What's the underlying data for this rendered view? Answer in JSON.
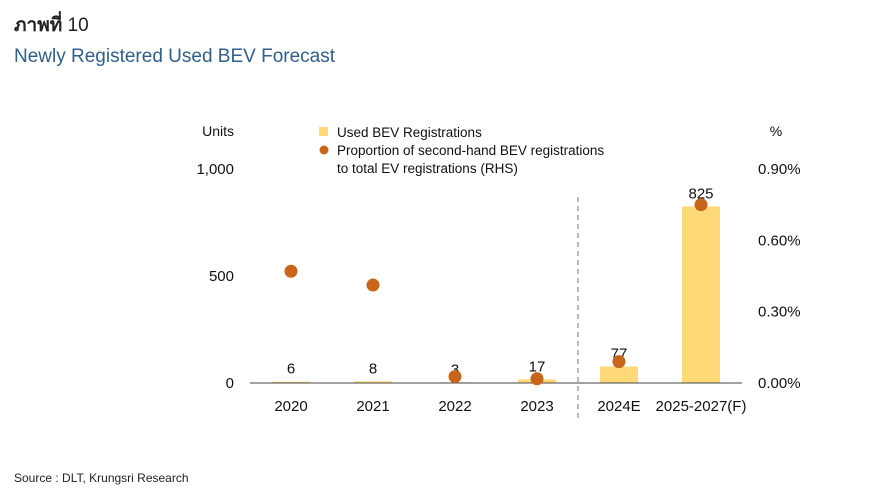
{
  "figure_label": {
    "prefix": "ภาพที่",
    "number": "10"
  },
  "title": "Newly Registered Used BEV Forecast",
  "source": "Source : DLT, Krungsri Research",
  "chart_data": {
    "type": "bar",
    "categories": [
      "2020",
      "2021",
      "2022",
      "2023",
      "2024E",
      "2025-2027(F)"
    ],
    "series": [
      {
        "name": "Used BEV Registrations",
        "type": "bar",
        "axis": "left",
        "color": "#FFD978",
        "values": [
          6,
          8,
          3,
          17,
          77,
          825
        ],
        "data_labels": [
          "6",
          "8",
          "3",
          "17",
          "77",
          "825"
        ]
      },
      {
        "name": "Proportion of second-hand BEV registrations to total EV registrations (RHS)",
        "legend_lines": [
          "Proportion of second-hand BEV registrations",
          "to total EV registrations (RHS)"
        ],
        "type": "scatter",
        "axis": "right",
        "color": "#C8651B",
        "values": [
          0.0047,
          0.00412,
          0.00027,
          0.00018,
          0.0009,
          0.0075
        ]
      }
    ],
    "y_left": {
      "label": "Units",
      "ylim": [
        0,
        1000
      ],
      "ticks": [
        0,
        500,
        1000
      ],
      "tick_labels": [
        "0",
        "500",
        "1,000"
      ]
    },
    "y_right": {
      "label": "%",
      "ylim": [
        0,
        0.009
      ],
      "ticks": [
        0,
        0.003,
        0.006,
        0.009
      ],
      "tick_labels": [
        "0.00%",
        "0.30%",
        "0.60%",
        "0.90%"
      ]
    },
    "forecast_divider_after": "2023",
    "legend": "top-center",
    "grid": false
  }
}
